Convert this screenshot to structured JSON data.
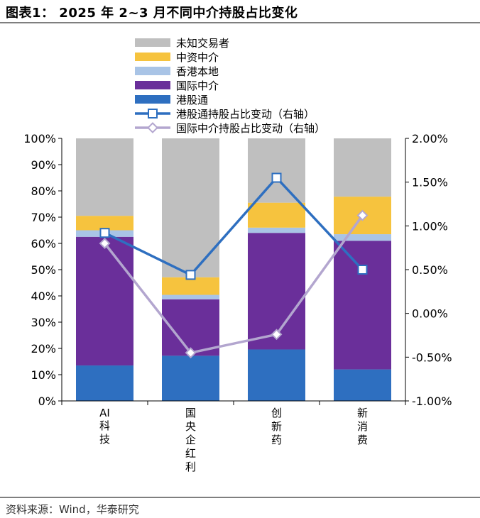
{
  "title": "图表1： 2025 年 2~3 月不同中介持股占比变化",
  "source": "资料来源：Wind，华泰研究",
  "chart_data": {
    "type": "bar",
    "stacked": true,
    "categories": [
      "AI科技",
      "国央企红利",
      "创新药",
      "新消费"
    ],
    "series": [
      {
        "name": "港股通",
        "color": "#2e6fc0",
        "values": [
          13.5,
          17.2,
          19.6,
          12.0
        ]
      },
      {
        "name": "国际中介",
        "color": "#6a2f9a",
        "values": [
          49.0,
          21.5,
          44.4,
          49.0
        ]
      },
      {
        "name": "香港本地",
        "color": "#a9c4e6",
        "values": [
          2.5,
          1.7,
          2.0,
          2.5
        ]
      },
      {
        "name": "中资中介",
        "color": "#f6c33e",
        "values": [
          5.5,
          6.7,
          9.5,
          14.3
        ]
      },
      {
        "name": "未知交易者",
        "color": "#bfbfbf",
        "values": [
          29.5,
          52.9,
          24.5,
          22.2
        ]
      }
    ],
    "lines": [
      {
        "name": "港股通持股占比变动（右轴）",
        "color": "#2e6fc0",
        "marker": "square",
        "values": [
          0.92,
          0.44,
          1.55,
          0.5
        ]
      },
      {
        "name": "国际中介持股占比变动（右轴）",
        "color": "#b3a6cf",
        "marker": "diamond",
        "values": [
          0.8,
          -0.45,
          -0.24,
          1.12
        ]
      }
    ],
    "legend_order": [
      "未知交易者",
      "中资中介",
      "香港本地",
      "国际中介",
      "港股通",
      "港股通持股占比变动（右轴）",
      "国际中介持股占比变动（右轴）"
    ],
    "ylim": [
      0,
      100
    ],
    "y_ticks": [
      "0%",
      "10%",
      "20%",
      "30%",
      "40%",
      "50%",
      "60%",
      "70%",
      "80%",
      "90%",
      "100%"
    ],
    "y2lim": [
      -1.0,
      2.0
    ],
    "y2_ticks": [
      "-1.00%",
      "-0.50%",
      "0.00%",
      "0.50%",
      "1.00%",
      "1.50%",
      "2.00%"
    ],
    "legend_position": "top",
    "grid": false
  }
}
